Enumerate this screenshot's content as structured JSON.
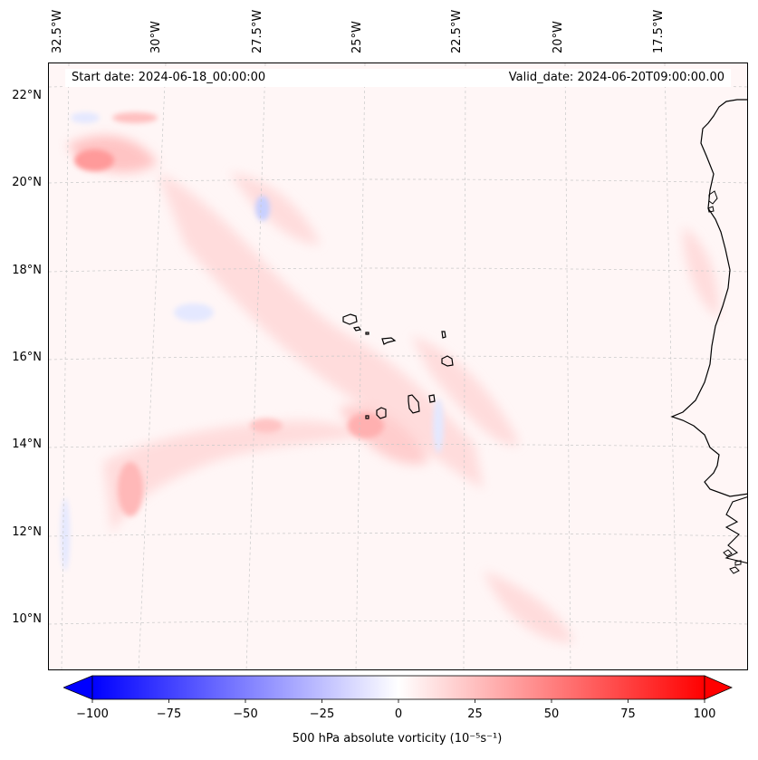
{
  "header": {
    "start_date": "Start date: 2024-06-18_00:00:00",
    "valid_date": "Valid_date: 2024-06-20T09:00:00.00"
  },
  "axes": {
    "longitude_labels": [
      "32.5°W",
      "30°W",
      "27.5°W",
      "25°W",
      "22.5°W",
      "20°W",
      "17.5°W"
    ],
    "latitude_labels": [
      "22°N",
      "20°N",
      "18°N",
      "16°N",
      "14°N",
      "12°N",
      "10°N"
    ]
  },
  "colorbar": {
    "ticks": [
      "−100",
      "−75",
      "−50",
      "−25",
      "0",
      "25",
      "50",
      "75",
      "100"
    ],
    "range": [
      -100,
      100
    ],
    "title": "500 hPa absolute vorticity (10⁻⁵s⁻¹)",
    "colormap": "bwr"
  },
  "colors": {
    "negative": "#0000ff",
    "neutral": "#ffffff",
    "positive": "#ff0000",
    "coastline": "#000000",
    "gridline": "#c8c8c8"
  }
}
